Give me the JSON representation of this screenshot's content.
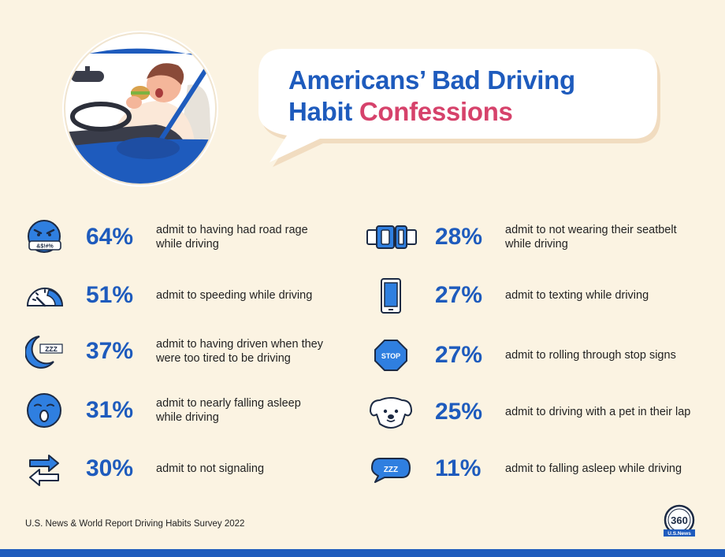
{
  "title": {
    "line1": "Americans’ Bad Driving",
    "line2_a": "Habit ",
    "line2_b": "Confessions"
  },
  "colors": {
    "blue": "#1e5bbd",
    "pink": "#d6426b",
    "background": "#fbf3e2"
  },
  "stats_left": [
    {
      "pct": "64%",
      "line1": "admit to having had road rage",
      "line2": "while driving",
      "icon": "angry-face-icon"
    },
    {
      "pct": "51%",
      "line1": "admit to speeding while driving",
      "line2": "",
      "icon": "speedometer-icon"
    },
    {
      "pct": "37%",
      "line1": "admit to having driven when they",
      "line2": "were too tired to be driving",
      "icon": "moon-zzz-icon"
    },
    {
      "pct": "31%",
      "line1": "admit to nearly falling asleep",
      "line2": "while driving",
      "icon": "yawning-face-icon"
    },
    {
      "pct": "30%",
      "line1": "admit to not signaling",
      "line2": "",
      "icon": "arrows-icon"
    }
  ],
  "stats_right": [
    {
      "pct": "28%",
      "line1": "admit to not wearing their seatbelt",
      "line2": "while driving",
      "icon": "seatbelt-icon"
    },
    {
      "pct": "27%",
      "line1": "admit to texting while driving",
      "line2": "",
      "icon": "phone-icon"
    },
    {
      "pct": "27%",
      "line1": "admit to rolling through stop signs",
      "line2": "",
      "icon": "stop-sign-icon",
      "sign_text": "STOP"
    },
    {
      "pct": "25%",
      "line1": "admit to driving with a pet in their lap",
      "line2": "",
      "icon": "dog-icon"
    },
    {
      "pct": "11%",
      "line1": "admit to falling asleep while driving",
      "line2": "",
      "icon": "zzz-bubble-icon",
      "sign_text": "ZZZ"
    }
  ],
  "source": "U.S. News & World Report Driving Habits Survey 2022",
  "logo": {
    "number": "360",
    "brand": "U.S.News"
  }
}
